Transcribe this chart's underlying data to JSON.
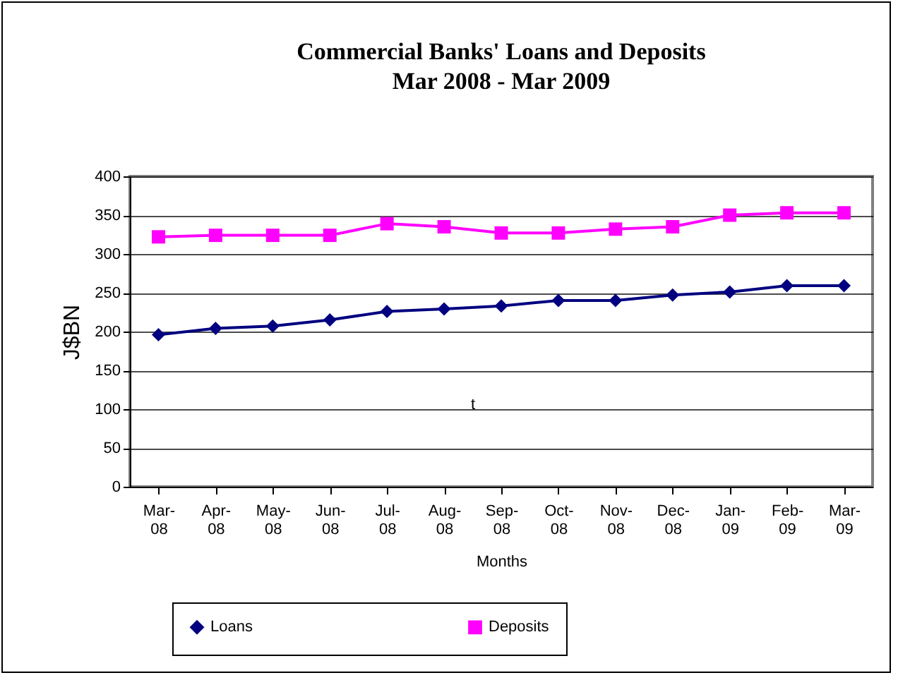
{
  "chart_data": {
    "type": "line",
    "title": "Commercial Banks' Loans and Deposits",
    "subtitle": "Mar 2008 - Mar 2009",
    "xlabel": "Months",
    "ylabel": "J$BN",
    "categories": [
      "Mar-08",
      "Apr-08",
      "May-08",
      "Jun-08",
      "Jul-08",
      "Aug-08",
      "Sep-08",
      "Oct-08",
      "Nov-08",
      "Dec-08",
      "Jan-09",
      "Feb-09",
      "Mar-09"
    ],
    "series": [
      {
        "name": "Loans",
        "color": "#000080",
        "marker": "diamond",
        "values": [
          196,
          204,
          207,
          215,
          226,
          229,
          233,
          240,
          240,
          247,
          251,
          259,
          259
        ]
      },
      {
        "name": "Deposits",
        "color": "#ff00ff",
        "marker": "square",
        "values": [
          322,
          324,
          324,
          324,
          339,
          335,
          327,
          327,
          332,
          335,
          350,
          353,
          353
        ]
      }
    ],
    "ylim": [
      0,
      400
    ],
    "yticks": [
      0,
      50,
      100,
      150,
      200,
      250,
      300,
      350,
      400
    ],
    "grid": "y",
    "legend": "bottom",
    "annotations": [
      "t"
    ]
  }
}
